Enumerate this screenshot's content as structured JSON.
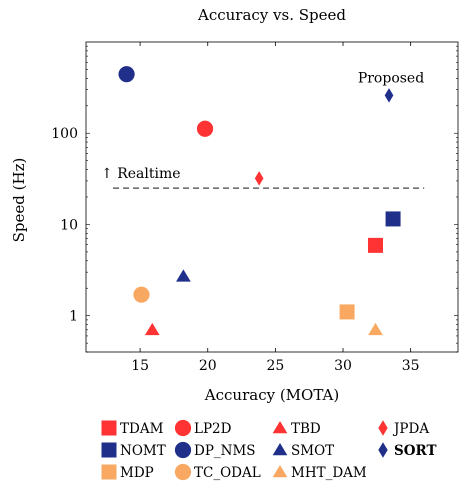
{
  "chart_data": {
    "type": "scatter",
    "title": "Accuracy vs. Speed",
    "xlabel": "Accuracy (MOTA)",
    "ylabel": "Speed (Hz)",
    "xlim": [
      11,
      38.5
    ],
    "ylim": [
      0.4,
      1000
    ],
    "y_scale": "log",
    "x_ticks": [
      15,
      20,
      25,
      30,
      35
    ],
    "y_ticks": [
      {
        "value": 1,
        "label": "1"
      },
      {
        "value": 10,
        "label": "10"
      },
      {
        "value": 100,
        "label": "100"
      }
    ],
    "grid": false,
    "legend_position": "bottom",
    "series": [
      {
        "name": "TDAM",
        "marker": "square",
        "color": "#ff3333",
        "x": 32.4,
        "y": 5.9
      },
      {
        "name": "NOMT",
        "marker": "square",
        "color": "#1f2f8a",
        "x": 33.7,
        "y": 11.5
      },
      {
        "name": "MDP",
        "marker": "square",
        "color": "#f8a860",
        "x": 30.3,
        "y": 1.1
      },
      {
        "name": "LP2D",
        "marker": "circle",
        "color": "#ff3333",
        "x": 19.8,
        "y": 112
      },
      {
        "name": "DP_NMS",
        "marker": "circle",
        "color": "#1f2f8a",
        "x": 14.0,
        "y": 444
      },
      {
        "name": "TC_ODAL",
        "marker": "circle",
        "color": "#f8a860",
        "x": 15.1,
        "y": 1.7
      },
      {
        "name": "TBD",
        "marker": "triangle",
        "color": "#ff3333",
        "x": 15.9,
        "y": 0.7
      },
      {
        "name": "SMOT",
        "marker": "triangle",
        "color": "#1f2f8a",
        "x": 18.2,
        "y": 2.7
      },
      {
        "name": "MHT_DAM",
        "marker": "triangle",
        "color": "#f8a860",
        "x": 32.4,
        "y": 0.7
      },
      {
        "name": "JPDA",
        "marker": "diamond",
        "color": "#ff3333",
        "x": 23.8,
        "y": 32
      },
      {
        "name": "SORT",
        "marker": "diamond",
        "color": "#1f2f8a",
        "x": 33.4,
        "y": 260,
        "bold": true
      }
    ],
    "realtime_line": {
      "y": 25,
      "x_start": 13,
      "x_end": 36
    },
    "annotations": {
      "realtime": "↑ Realtime",
      "proposed": "Proposed"
    }
  }
}
